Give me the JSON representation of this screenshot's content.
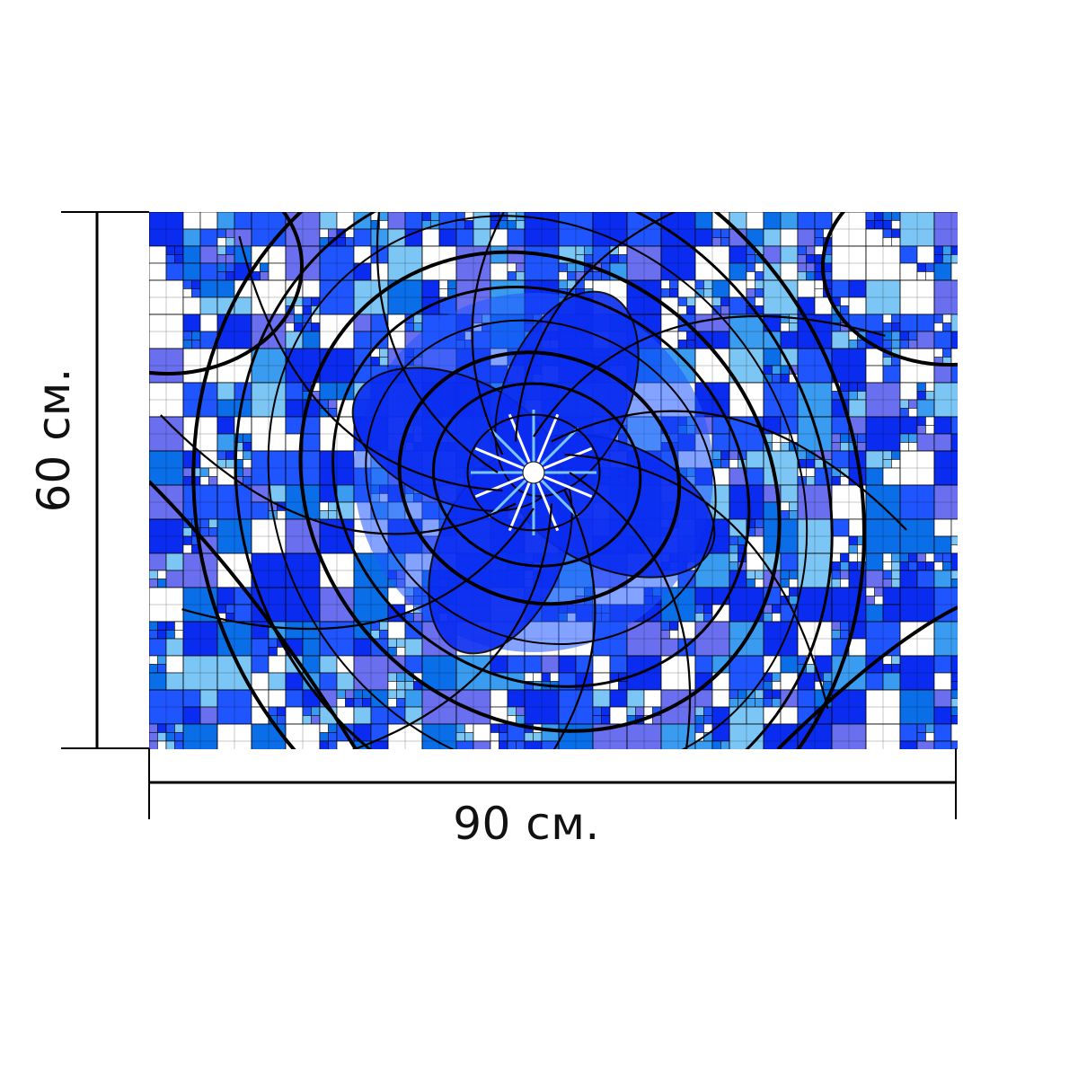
{
  "product": {
    "width_label": "90 см.",
    "height_label": "60 см."
  },
  "artwork": {
    "description_icon": "abstract-blue-fractal-mosaic",
    "colors": {
      "deep_blue": "#0a2cf0",
      "royal_blue": "#1f55ff",
      "medium_blue": "#0a6ee8",
      "sky_blue": "#3a9cf0",
      "light_blue": "#7cc6f5",
      "periwinkle": "#6a6ff0",
      "white": "#ffffff",
      "line": "#000000"
    }
  }
}
